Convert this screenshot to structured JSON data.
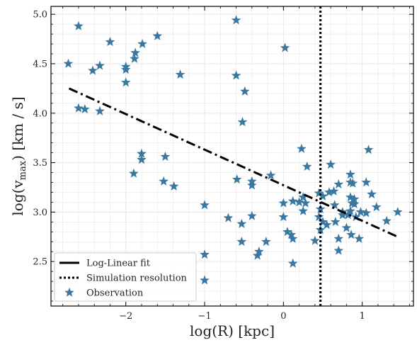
{
  "chart_data": {
    "type": "scatter",
    "title": "",
    "xlabel": "log(R) [kpc]",
    "ylabel_parts": {
      "before": "log(v",
      "sub": "max",
      "after": ") [km / s]"
    },
    "xlim": [
      -2.95,
      1.65
    ],
    "ylim": [
      2.05,
      5.08
    ],
    "xticks": [
      -2,
      -1,
      0,
      1
    ],
    "xtick_labels": [
      "−2",
      "−1",
      "0",
      "1"
    ],
    "yticks": [
      2.5,
      3.0,
      3.5,
      4.0,
      4.5,
      5.0
    ],
    "ytick_labels": [
      "2.5",
      "3.0",
      "3.5",
      "4.0",
      "4.5",
      "5.0"
    ],
    "grid": true,
    "legend_position": "lower-left",
    "colors": {
      "observation": "#3a78a0",
      "fit": "#000000",
      "resolution": "#000000",
      "grid": "#e6e6e6"
    },
    "series": [
      {
        "name": "Log-Linear fit",
        "kind": "line",
        "style": "dash-dot",
        "points": [
          [
            -2.72,
            4.25
          ],
          [
            1.45,
            2.75
          ]
        ]
      },
      {
        "name": "Simulation resolution",
        "kind": "vline",
        "style": "dotted",
        "x": 0.47
      },
      {
        "name": "Observation",
        "kind": "scatter",
        "marker": "star",
        "points": [
          [
            -2.6,
            4.88
          ],
          [
            -2.73,
            4.5
          ],
          [
            -2.42,
            4.43
          ],
          [
            -2.33,
            4.48
          ],
          [
            -2.2,
            4.72
          ],
          [
            -1.88,
            4.61
          ],
          [
            -1.89,
            4.55
          ],
          [
            -1.79,
            4.7
          ],
          [
            -1.6,
            4.78
          ],
          [
            -2.0,
            4.47
          ],
          [
            -2.0,
            4.44
          ],
          [
            -2.0,
            4.31
          ],
          [
            -1.31,
            4.39
          ],
          [
            -2.6,
            4.05
          ],
          [
            -2.52,
            4.04
          ],
          [
            -2.33,
            4.02
          ],
          [
            -1.8,
            3.59
          ],
          [
            -1.8,
            3.53
          ],
          [
            -1.5,
            3.56
          ],
          [
            -1.9,
            3.39
          ],
          [
            -1.52,
            3.31
          ],
          [
            -1.39,
            3.26
          ],
          [
            -1.0,
            3.07
          ],
          [
            -1.0,
            2.57
          ],
          [
            -1.0,
            2.31
          ],
          [
            -0.6,
            4.94
          ],
          [
            -0.6,
            4.38
          ],
          [
            -0.49,
            4.22
          ],
          [
            -0.52,
            3.91
          ],
          [
            -0.59,
            3.33
          ],
          [
            -0.4,
            3.31
          ],
          [
            -0.4,
            3.27
          ],
          [
            -0.16,
            3.37
          ],
          [
            -0.7,
            2.94
          ],
          [
            -0.53,
            2.88
          ],
          [
            -0.4,
            2.96
          ],
          [
            -0.53,
            2.7
          ],
          [
            -0.33,
            2.56
          ],
          [
            -0.31,
            2.6
          ],
          [
            -0.22,
            2.7
          ],
          [
            0.02,
            4.66
          ],
          [
            0.23,
            3.64
          ],
          [
            0.3,
            3.46
          ],
          [
            0.0,
            3.09
          ],
          [
            0.12,
            3.11
          ],
          [
            0.2,
            3.1
          ],
          [
            0.25,
            3.15
          ],
          [
            0.28,
            3.09
          ],
          [
            0.25,
            3.01
          ],
          [
            0.0,
            2.95
          ],
          [
            0.05,
            2.8
          ],
          [
            0.1,
            2.77
          ],
          [
            0.12,
            2.73
          ],
          [
            0.12,
            2.48
          ],
          [
            0.4,
            2.71
          ],
          [
            0.45,
            3.19
          ],
          [
            0.5,
            3.16
          ],
          [
            0.47,
            3.03
          ],
          [
            0.45,
            2.95
          ],
          [
            0.5,
            2.9
          ],
          [
            0.47,
            2.82
          ],
          [
            0.55,
            2.87
          ],
          [
            0.6,
            3.48
          ],
          [
            0.58,
            3.2
          ],
          [
            0.64,
            3.21
          ],
          [
            0.7,
            3.28
          ],
          [
            0.65,
            3.07
          ],
          [
            0.75,
            3.0
          ],
          [
            0.75,
            2.97
          ],
          [
            0.66,
            2.9
          ],
          [
            0.7,
            2.73
          ],
          [
            0.7,
            2.61
          ],
          [
            0.85,
            3.38
          ],
          [
            0.85,
            3.3
          ],
          [
            0.88,
            3.29
          ],
          [
            0.85,
            3.15
          ],
          [
            0.9,
            3.13
          ],
          [
            0.87,
            3.09
          ],
          [
            0.9,
            3.08
          ],
          [
            0.85,
            3.01
          ],
          [
            0.82,
            2.97
          ],
          [
            0.92,
            2.95
          ],
          [
            0.8,
            2.84
          ],
          [
            0.86,
            2.77
          ],
          [
            0.96,
            2.73
          ],
          [
            0.98,
            3.0
          ],
          [
            1.05,
            2.99
          ],
          [
            1.05,
            3.3
          ],
          [
            1.08,
            3.63
          ],
          [
            1.12,
            3.18
          ],
          [
            1.18,
            3.05
          ],
          [
            1.31,
            2.91
          ],
          [
            1.45,
            3.0
          ]
        ]
      }
    ]
  }
}
